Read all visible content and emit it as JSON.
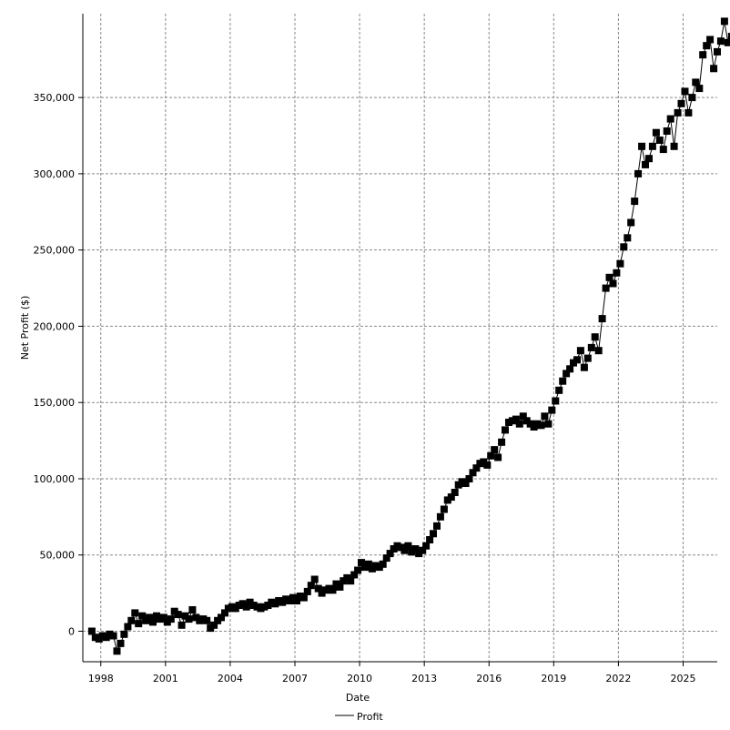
{
  "chart_data": {
    "type": "line",
    "xlabel": "Date",
    "ylabel": "Net Profit ($)",
    "x_tick_labels": [
      "1998",
      "2001",
      "2004",
      "2007",
      "2010",
      "2013",
      "2016",
      "2019",
      "2022",
      "2025"
    ],
    "y_tick_labels": [
      "0",
      "50,000",
      "100,000",
      "150,000",
      "200,000",
      "250,000",
      "300,000",
      "350,000"
    ],
    "xlim": [
      "1997-03-01",
      "2026-08-01"
    ],
    "ylim": [
      -20000,
      405000
    ],
    "grid": true,
    "legend": "bottom",
    "series": [
      {
        "name": "Profit",
        "color": "#000000",
        "marker": "square",
        "points": [
          [
            "1997-08",
            0
          ],
          [
            "1997-10",
            -4000
          ],
          [
            "1997-12",
            -5000
          ],
          [
            "1998-02",
            -3000
          ],
          [
            "1998-04",
            -4000
          ],
          [
            "1998-06",
            -2000
          ],
          [
            "1998-08",
            -3000
          ],
          [
            "1998-10",
            -13000
          ],
          [
            "1998-12",
            -8000
          ],
          [
            "1999-02",
            -2000
          ],
          [
            "1999-04",
            3000
          ],
          [
            "1999-06",
            7000
          ],
          [
            "1999-08",
            12000
          ],
          [
            "1999-10",
            5000
          ],
          [
            "1999-12",
            10000
          ],
          [
            "2000-02",
            7000
          ],
          [
            "2000-04",
            9000
          ],
          [
            "2000-06",
            6000
          ],
          [
            "2000-08",
            10000
          ],
          [
            "2000-10",
            8000
          ],
          [
            "2000-12",
            9000
          ],
          [
            "2001-02",
            6000
          ],
          [
            "2001-04",
            8000
          ],
          [
            "2001-06",
            13000
          ],
          [
            "2001-08",
            11000
          ],
          [
            "2001-10",
            4000
          ],
          [
            "2001-12",
            10000
          ],
          [
            "2002-02",
            8000
          ],
          [
            "2002-04",
            14000
          ],
          [
            "2002-06",
            9000
          ],
          [
            "2002-08",
            7000
          ],
          [
            "2002-10",
            8000
          ],
          [
            "2002-12",
            7000
          ],
          [
            "2003-02",
            2000
          ],
          [
            "2003-04",
            4000
          ],
          [
            "2003-06",
            7000
          ],
          [
            "2003-08",
            9000
          ],
          [
            "2003-10",
            12000
          ],
          [
            "2003-12",
            15000
          ],
          [
            "2004-02",
            16000
          ],
          [
            "2004-04",
            15000
          ],
          [
            "2004-06",
            17000
          ],
          [
            "2004-08",
            18000
          ],
          [
            "2004-10",
            16000
          ],
          [
            "2004-12",
            19000
          ],
          [
            "2005-02",
            17000
          ],
          [
            "2005-04",
            16000
          ],
          [
            "2005-06",
            15000
          ],
          [
            "2005-08",
            16000
          ],
          [
            "2005-10",
            17000
          ],
          [
            "2005-12",
            19000
          ],
          [
            "2006-02",
            18000
          ],
          [
            "2006-04",
            20000
          ],
          [
            "2006-06",
            19000
          ],
          [
            "2006-08",
            21000
          ],
          [
            "2006-10",
            20000
          ],
          [
            "2006-12",
            22000
          ],
          [
            "2007-02",
            20000
          ],
          [
            "2007-04",
            23000
          ],
          [
            "2007-06",
            22000
          ],
          [
            "2007-08",
            26000
          ],
          [
            "2007-10",
            30000
          ],
          [
            "2007-12",
            34000
          ],
          [
            "2008-02",
            28000
          ],
          [
            "2008-04",
            25000
          ],
          [
            "2008-06",
            27000
          ],
          [
            "2008-08",
            28000
          ],
          [
            "2008-10",
            27000
          ],
          [
            "2008-12",
            31000
          ],
          [
            "2009-02",
            29000
          ],
          [
            "2009-04",
            33000
          ],
          [
            "2009-06",
            35000
          ],
          [
            "2009-08",
            33000
          ],
          [
            "2009-10",
            37000
          ],
          [
            "2009-12",
            40000
          ],
          [
            "2010-02",
            45000
          ],
          [
            "2010-04",
            42000
          ],
          [
            "2010-06",
            44000
          ],
          [
            "2010-08",
            41000
          ],
          [
            "2010-10",
            43000
          ],
          [
            "2010-12",
            42000
          ],
          [
            "2011-02",
            44000
          ],
          [
            "2011-04",
            48000
          ],
          [
            "2011-06",
            51000
          ],
          [
            "2011-08",
            54000
          ],
          [
            "2011-10",
            56000
          ],
          [
            "2011-12",
            55000
          ],
          [
            "2012-02",
            53000
          ],
          [
            "2012-04",
            56000
          ],
          [
            "2012-06",
            52000
          ],
          [
            "2012-08",
            54000
          ],
          [
            "2012-10",
            51000
          ],
          [
            "2012-12",
            53000
          ],
          [
            "2013-02",
            56000
          ],
          [
            "2013-04",
            60000
          ],
          [
            "2013-06",
            64000
          ],
          [
            "2013-08",
            69000
          ],
          [
            "2013-10",
            75000
          ],
          [
            "2013-12",
            80000
          ],
          [
            "2014-02",
            86000
          ],
          [
            "2014-04",
            88000
          ],
          [
            "2014-06",
            91000
          ],
          [
            "2014-08",
            96000
          ],
          [
            "2014-10",
            98000
          ],
          [
            "2014-12",
            97000
          ],
          [
            "2015-02",
            100000
          ],
          [
            "2015-04",
            104000
          ],
          [
            "2015-06",
            107000
          ],
          [
            "2015-08",
            110000
          ],
          [
            "2015-10",
            111000
          ],
          [
            "2015-12",
            109000
          ],
          [
            "2016-02",
            115000
          ],
          [
            "2016-04",
            119000
          ],
          [
            "2016-06",
            114000
          ],
          [
            "2016-08",
            124000
          ],
          [
            "2016-10",
            132000
          ],
          [
            "2016-12",
            137000
          ],
          [
            "2017-02",
            138000
          ],
          [
            "2017-04",
            139000
          ],
          [
            "2017-06",
            136000
          ],
          [
            "2017-08",
            141000
          ],
          [
            "2017-10",
            138000
          ],
          [
            "2017-12",
            136000
          ],
          [
            "2018-02",
            134000
          ],
          [
            "2018-04",
            136000
          ],
          [
            "2018-06",
            135000
          ],
          [
            "2018-08",
            141000
          ],
          [
            "2018-10",
            136000
          ],
          [
            "2018-12",
            145000
          ],
          [
            "2019-02",
            151000
          ],
          [
            "2019-04",
            158000
          ],
          [
            "2019-06",
            164000
          ],
          [
            "2019-08",
            169000
          ],
          [
            "2019-10",
            172000
          ],
          [
            "2019-12",
            176000
          ],
          [
            "2020-02",
            178000
          ],
          [
            "2020-04",
            184000
          ],
          [
            "2020-06",
            173000
          ],
          [
            "2020-08",
            179000
          ],
          [
            "2020-10",
            186000
          ],
          [
            "2020-12",
            193000
          ],
          [
            "2021-02",
            184000
          ],
          [
            "2021-04",
            205000
          ],
          [
            "2021-06",
            225000
          ],
          [
            "2021-08",
            232000
          ],
          [
            "2021-10",
            228000
          ],
          [
            "2021-12",
            235000
          ],
          [
            "2022-02",
            241000
          ],
          [
            "2022-04",
            252000
          ],
          [
            "2022-06",
            258000
          ],
          [
            "2022-08",
            268000
          ],
          [
            "2022-10",
            282000
          ],
          [
            "2022-12",
            300000
          ],
          [
            "2023-02",
            318000
          ],
          [
            "2023-04",
            306000
          ],
          [
            "2023-06",
            310000
          ],
          [
            "2023-08",
            318000
          ],
          [
            "2023-10",
            327000
          ],
          [
            "2023-12",
            322000
          ],
          [
            "2024-02",
            316000
          ],
          [
            "2024-04",
            328000
          ],
          [
            "2024-06",
            336000
          ],
          [
            "2024-08",
            318000
          ],
          [
            "2024-10",
            340000
          ],
          [
            "2024-12",
            346000
          ],
          [
            "2025-02",
            354000
          ],
          [
            "2025-04",
            340000
          ],
          [
            "2025-06",
            350000
          ],
          [
            "2025-08",
            360000
          ],
          [
            "2025-10",
            356000
          ],
          [
            "2025-12",
            378000
          ],
          [
            "2026-02",
            384000
          ],
          [
            "2026-04",
            388000
          ],
          [
            "2026-06",
            369000
          ],
          [
            "2026-08",
            380000
          ],
          [
            "2026-10",
            387000
          ],
          [
            "2026-12",
            400000
          ],
          [
            "2027-02",
            386000
          ],
          [
            "2027-04",
            390000
          ],
          [
            "2027-06",
            383000
          ]
        ]
      }
    ]
  }
}
